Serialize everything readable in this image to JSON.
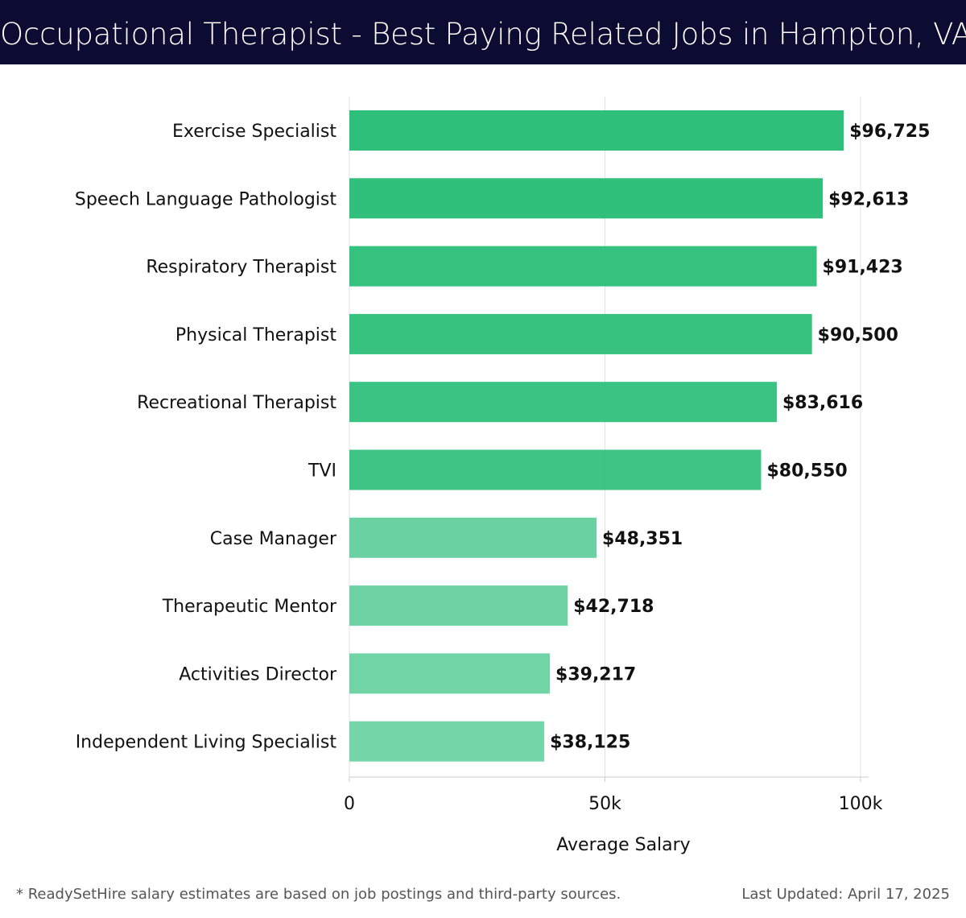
{
  "header": {
    "title": "Occupational Therapist - Best Paying Related Jobs in Hampton, VA"
  },
  "chart_data": {
    "type": "bar",
    "orientation": "horizontal",
    "categories": [
      "Exercise Specialist",
      "Speech Language Pathologist",
      "Respiratory Therapist",
      "Physical Therapist",
      "Recreational Therapist",
      "TVI",
      "Case Manager",
      "Therapeutic Mentor",
      "Activities Director",
      "Independent Living Specialist"
    ],
    "values": [
      96725,
      92613,
      91423,
      90500,
      83616,
      80550,
      48351,
      42718,
      39217,
      38125
    ],
    "value_labels": [
      "$96,725",
      "$92,613",
      "$91,423",
      "$90,500",
      "$83,616",
      "$80,550",
      "$48,351",
      "$42,718",
      "$39,217",
      "$38,125"
    ],
    "xlabel": "Average Salary",
    "ylabel": "",
    "xlim": [
      0,
      100000
    ],
    "xticks": [
      0,
      50000,
      100000
    ],
    "xtick_labels": [
      "0",
      "50k",
      "100k"
    ],
    "grid": "vertical",
    "colors": {
      "top_bar": "#2ebf7a",
      "bottom_bar": "#5dce9a",
      "label_text": "#111111",
      "grid": "#e3e3e3",
      "axis": "#cccccc"
    }
  },
  "footer": {
    "note": "* ReadySetHire salary estimates are based on job postings and third-party sources.",
    "updated": "Last Updated: April 17, 2025"
  }
}
